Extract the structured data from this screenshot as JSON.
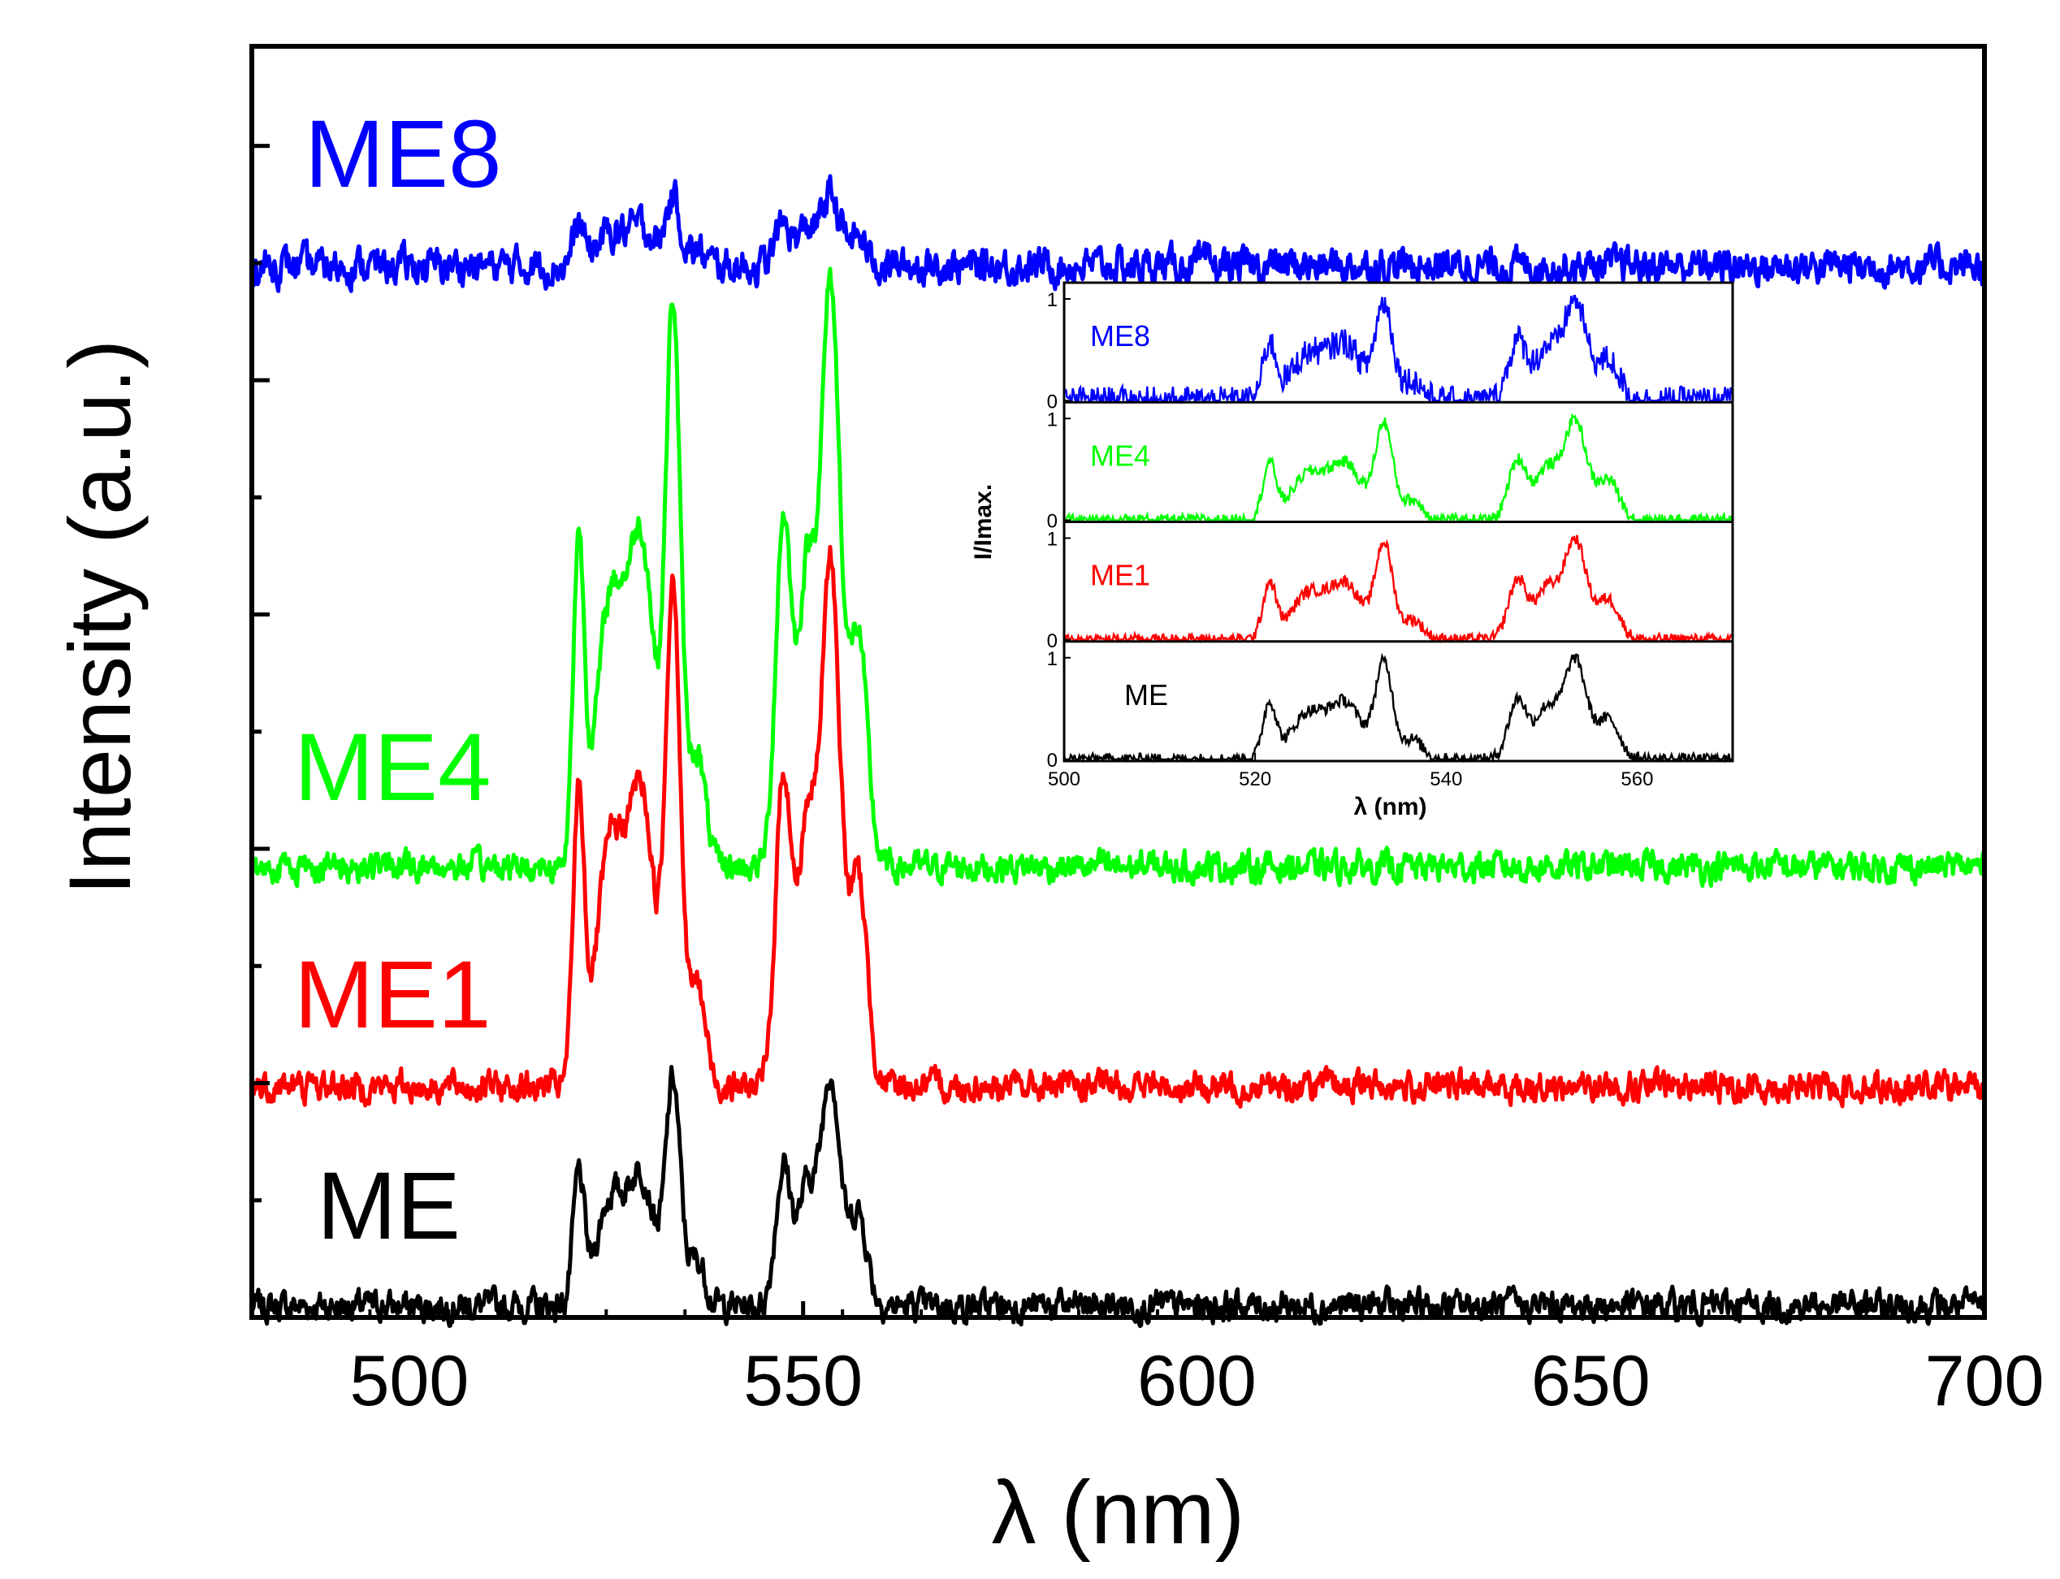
{
  "chart_data": [
    {
      "id": "main",
      "type": "line",
      "title": "",
      "xlabel": "λ (nm)",
      "ylabel": "Intensity (a.u.)",
      "xlim": [
        480,
        700
      ],
      "ylim": [
        0,
        11
      ],
      "x_ticks": [
        500,
        550,
        600,
        650,
        700
      ],
      "y_ticks_unlabeled": 10,
      "grid": false,
      "peaks_nm": [
        521.5,
        533.5,
        547.5,
        553.5
      ],
      "series": [
        {
          "name": "ME",
          "label": "ME",
          "color": "#000000",
          "baseline": 0.1,
          "peak_height": 2.0,
          "noise": 0.1
        },
        {
          "name": "ME1",
          "label": "ME1",
          "color": "#ff0000",
          "baseline": 2.0,
          "peak_height": 4.5,
          "noise": 0.1
        },
        {
          "name": "ME4",
          "label": "ME4",
          "color": "#00ff00",
          "baseline": 3.9,
          "peak_height": 5.0,
          "noise": 0.1
        },
        {
          "name": "ME8",
          "label": "ME8",
          "color": "#0000ff",
          "baseline": 9.1,
          "peak_height": 0.6,
          "noise": 0.12
        }
      ]
    },
    {
      "id": "inset",
      "type": "line",
      "title": "",
      "xlabel": "λ (nm)",
      "ylabel": "I/Imax.",
      "xlim": [
        500,
        570
      ],
      "x_ticks": [
        500,
        520,
        540,
        560
      ],
      "panel_ylim": [
        0,
        1
      ],
      "panel_y_ticks": [
        0,
        1
      ],
      "panels": [
        {
          "name": "ME8",
          "label": "ME8",
          "color": "#0000ff"
        },
        {
          "name": "ME4",
          "label": "ME4",
          "color": "#00ff00"
        },
        {
          "name": "ME1",
          "label": "ME1",
          "color": "#ff0000"
        },
        {
          "name": "ME",
          "label": "ME",
          "color": "#000000"
        }
      ]
    }
  ]
}
